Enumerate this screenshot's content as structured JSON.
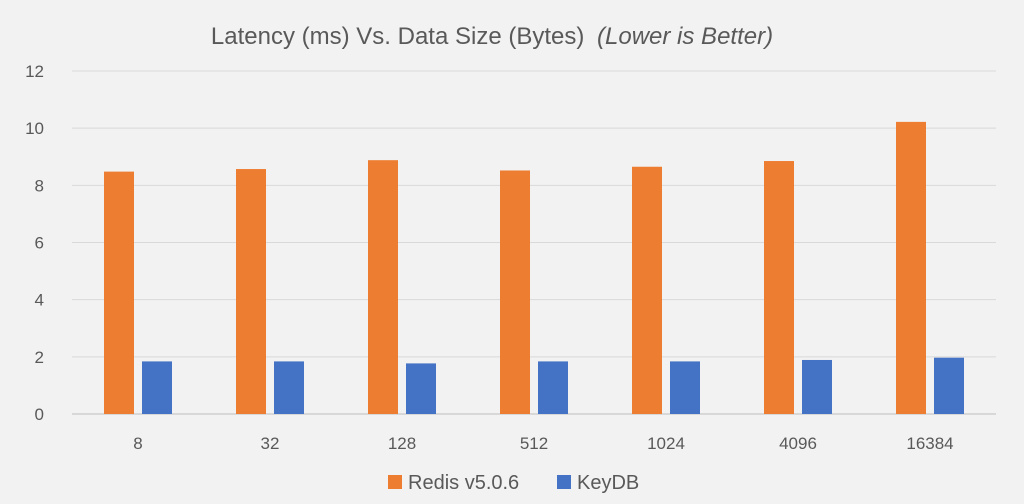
{
  "chart_data": {
    "type": "bar",
    "title": "Latency (ms) Vs. Data Size (Bytes)",
    "title_emphasis": "(Lower is Better)",
    "xlabel": "",
    "ylabel": "",
    "categories": [
      "8",
      "32",
      "128",
      "512",
      "1024",
      "4096",
      "16384"
    ],
    "series": [
      {
        "name": "Redis v5.0.6",
        "color": "#ed7d31",
        "values": [
          8.48,
          8.57,
          8.88,
          8.52,
          8.65,
          8.85,
          10.22
        ]
      },
      {
        "name": "KeyDB",
        "color": "#4472c4",
        "values": [
          1.84,
          1.84,
          1.77,
          1.84,
          1.84,
          1.89,
          1.97
        ]
      }
    ],
    "ylim": [
      0,
      12
    ],
    "yticks": [
      "0",
      "2",
      "4",
      "6",
      "8",
      "10",
      "12"
    ],
    "grid": true,
    "legend_position": "bottom"
  }
}
